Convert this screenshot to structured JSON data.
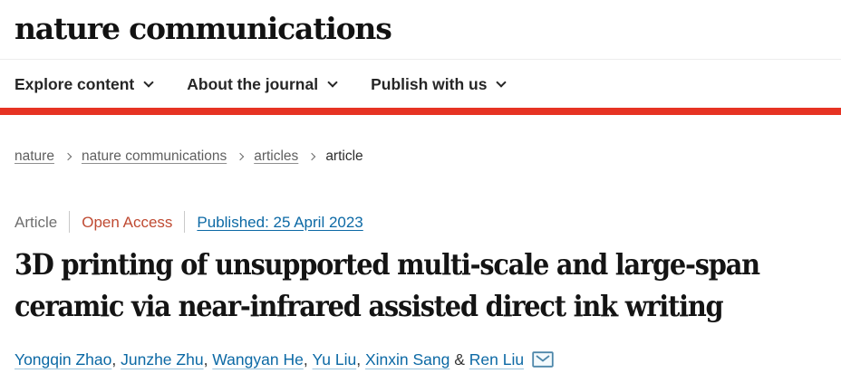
{
  "colors": {
    "accent_red": "#e63323",
    "open_access": "#bf4a32",
    "link_blue": "#0c69a5"
  },
  "header": {
    "logo_text": "nature communications",
    "nav": [
      {
        "label": "Explore content"
      },
      {
        "label": "About the journal"
      },
      {
        "label": "Publish with us"
      }
    ]
  },
  "breadcrumb": {
    "items": [
      {
        "label": "nature",
        "link": true
      },
      {
        "label": "nature communications",
        "link": true
      },
      {
        "label": "articles",
        "link": true
      },
      {
        "label": "article",
        "link": false
      }
    ]
  },
  "article": {
    "type_label": "Article",
    "access_label": "Open Access",
    "published_label": "Published: 25 April 2023",
    "title": "3D printing of unsupported multi-scale and large-span ceramic via near-infrared assisted direct ink writing",
    "authors": [
      "Yongqin Zhao",
      "Junzhe Zhu",
      "Wangyan He",
      "Yu Liu",
      "Xinxin Sang",
      "Ren Liu"
    ],
    "last_author_separator": "&"
  },
  "icons": {
    "nav_chevron": "chevron-down",
    "breadcrumb_separator": "chevron-right",
    "corresponding_email": "envelope"
  }
}
